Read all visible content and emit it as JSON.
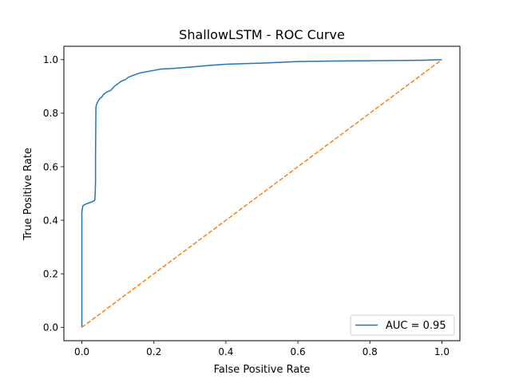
{
  "chart_data": {
    "type": "line",
    "title": "ShallowLSTM - ROC Curve",
    "xlabel": "False Positive Rate",
    "ylabel": "True Positive Rate",
    "xlim": [
      -0.05,
      1.05
    ],
    "ylim": [
      -0.05,
      1.05
    ],
    "xticks": [
      0.0,
      0.2,
      0.4,
      0.6,
      0.8,
      1.0
    ],
    "yticks": [
      0.0,
      0.2,
      0.4,
      0.6,
      0.8,
      1.0
    ],
    "xtick_labels": [
      "0.0",
      "0.2",
      "0.4",
      "0.6",
      "0.8",
      "1.0"
    ],
    "ytick_labels": [
      "0.0",
      "0.2",
      "0.4",
      "0.6",
      "0.8",
      "1.0"
    ],
    "grid": false,
    "legend_position": "lower-right",
    "series": [
      {
        "name": "AUC = 0.95",
        "color": "#1f77b4",
        "style": "solid",
        "x": [
          0.0,
          0.0,
          0.001,
          0.003,
          0.01,
          0.02,
          0.03,
          0.036,
          0.037,
          0.038,
          0.038,
          0.039,
          0.04,
          0.045,
          0.05,
          0.055,
          0.06,
          0.065,
          0.07,
          0.08,
          0.09,
          0.1,
          0.11,
          0.12,
          0.13,
          0.14,
          0.15,
          0.16,
          0.18,
          0.2,
          0.22,
          0.25,
          0.3,
          0.35,
          0.4,
          0.45,
          0.5,
          0.55,
          0.6,
          0.7,
          0.8,
          0.9,
          0.95,
          1.0
        ],
        "y": [
          0.0,
          0.43,
          0.44,
          0.455,
          0.46,
          0.465,
          0.47,
          0.475,
          0.5,
          0.55,
          0.65,
          0.82,
          0.83,
          0.845,
          0.855,
          0.86,
          0.87,
          0.875,
          0.88,
          0.885,
          0.9,
          0.91,
          0.92,
          0.925,
          0.935,
          0.94,
          0.945,
          0.95,
          0.955,
          0.96,
          0.965,
          0.967,
          0.972,
          0.978,
          0.983,
          0.985,
          0.987,
          0.99,
          0.993,
          0.995,
          0.996,
          0.997,
          0.998,
          1.0
        ]
      },
      {
        "name": "",
        "color": "#ff7f0e",
        "style": "dashed",
        "x": [
          0.0,
          1.0
        ],
        "y": [
          0.0,
          1.0
        ]
      }
    ]
  }
}
